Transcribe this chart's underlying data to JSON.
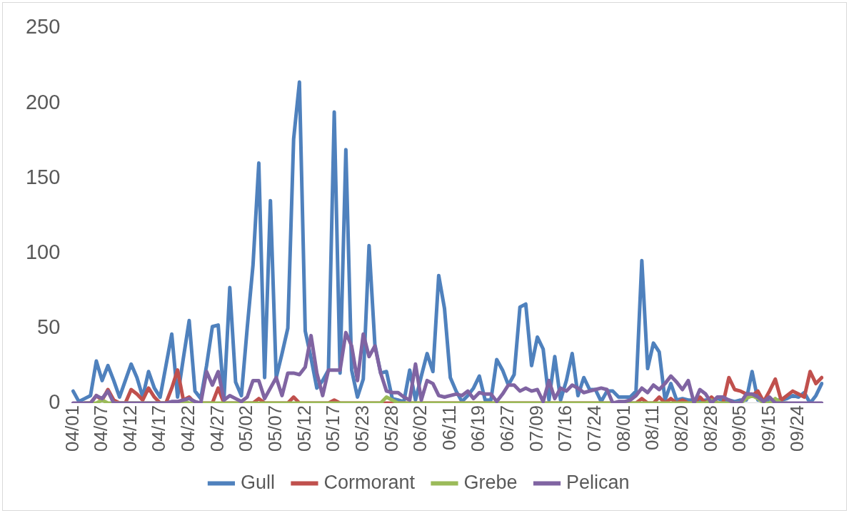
{
  "chart_data": {
    "type": "line",
    "categories": [
      "04/01",
      null,
      null,
      null,
      null,
      "04/07",
      null,
      null,
      null,
      null,
      "04/12",
      null,
      null,
      null,
      null,
      "04/17",
      null,
      null,
      null,
      null,
      "04/22",
      null,
      null,
      null,
      null,
      "04/27",
      null,
      null,
      null,
      null,
      "05/02",
      null,
      null,
      null,
      null,
      "05/07",
      null,
      null,
      null,
      null,
      "05/12",
      null,
      null,
      null,
      null,
      "05/17",
      null,
      null,
      null,
      null,
      "05/23",
      null,
      null,
      null,
      null,
      "05/28",
      null,
      null,
      null,
      null,
      "06/02",
      null,
      null,
      null,
      null,
      "06/11",
      null,
      null,
      null,
      null,
      "06/19",
      null,
      null,
      null,
      null,
      "06/27",
      null,
      null,
      null,
      null,
      "07/09",
      null,
      null,
      null,
      null,
      "07/16",
      null,
      null,
      null,
      null,
      "07/24",
      null,
      null,
      null,
      null,
      "08/01",
      null,
      null,
      null,
      null,
      "08/11",
      null,
      null,
      null,
      null,
      "08/20",
      null,
      null,
      null,
      null,
      "08/28",
      null,
      null,
      null,
      null,
      "09/05",
      null,
      null,
      null,
      null,
      "09/15",
      null,
      null,
      null,
      null,
      "09/24",
      null,
      null,
      null,
      null
    ],
    "series": [
      {
        "name": "Gull",
        "color": "#4f81bd",
        "values": [
          8,
          1,
          3,
          5,
          28,
          15,
          25,
          15,
          4,
          15,
          26,
          17,
          4,
          21,
          10,
          4,
          25,
          46,
          4,
          30,
          55,
          8,
          3,
          25,
          51,
          52,
          3,
          77,
          14,
          5,
          50,
          92,
          160,
          17,
          135,
          17,
          33,
          50,
          176,
          214,
          48,
          30,
          10,
          15,
          22,
          194,
          20,
          169,
          22,
          4,
          16,
          105,
          39,
          20,
          21,
          3,
          2,
          1,
          22,
          2,
          18,
          33,
          21,
          85,
          63,
          17,
          8,
          1,
          5,
          10,
          18,
          2,
          2,
          29,
          22,
          12,
          19,
          64,
          66,
          25,
          44,
          36,
          2,
          31,
          2,
          15,
          33,
          5,
          17,
          9,
          9,
          1,
          8,
          8,
          4,
          4,
          4,
          8,
          95,
          23,
          40,
          34,
          2,
          13,
          2,
          3,
          2,
          2,
          1,
          2,
          2,
          3,
          2,
          2,
          1,
          2,
          2,
          21,
          2,
          2,
          1,
          2,
          2,
          3,
          5,
          4,
          7,
          0,
          5,
          13
        ]
      },
      {
        "name": "Cormorant",
        "color": "#c0504d",
        "values": [
          null,
          null,
          0,
          0,
          5,
          2,
          9,
          2,
          0,
          0,
          9,
          6,
          2,
          10,
          4,
          0,
          0,
          10,
          22,
          2,
          4,
          0,
          0,
          0,
          0,
          10,
          0,
          0,
          0,
          0,
          0,
          0,
          3,
          0,
          0,
          0,
          0,
          0,
          4,
          0,
          0,
          0,
          0,
          0,
          0,
          2,
          0,
          0,
          0,
          0,
          0,
          0,
          0,
          0,
          0,
          0,
          0,
          0,
          0,
          0,
          0,
          0,
          0,
          0,
          0,
          0,
          0,
          0,
          0,
          0,
          0,
          0,
          0,
          0,
          0,
          0,
          0,
          0,
          0,
          0,
          0,
          0,
          0,
          0,
          0,
          0,
          0,
          0,
          0,
          0,
          0,
          0,
          0,
          0,
          0,
          0,
          0,
          0,
          3,
          0,
          0,
          4,
          0,
          3,
          0,
          2,
          0,
          0,
          4,
          0,
          4,
          0,
          0,
          17,
          9,
          8,
          6,
          5,
          8,
          1,
          8,
          16,
          2,
          5,
          8,
          6,
          4,
          21,
          13,
          17
        ]
      },
      {
        "name": "Grebe",
        "color": "#9bbb59",
        "values": [
          null,
          null,
          0,
          0,
          0,
          2,
          0,
          0,
          0,
          0,
          0,
          0,
          0,
          0,
          0,
          0,
          0,
          0,
          0,
          1,
          0,
          0,
          0,
          0,
          0,
          0,
          0,
          0,
          0,
          0,
          0,
          0,
          0,
          0,
          0,
          0,
          0,
          0,
          0,
          0,
          0,
          0,
          0,
          0,
          0,
          0,
          0,
          0,
          0,
          0,
          0,
          0,
          0,
          0,
          4,
          2,
          0,
          0,
          0,
          0,
          0,
          0,
          0,
          0,
          0,
          0,
          0,
          0,
          0,
          0,
          0,
          0,
          0,
          0,
          0,
          0,
          0,
          0,
          0,
          0,
          0,
          0,
          0,
          0,
          0,
          0,
          0,
          0,
          0,
          0,
          0,
          0,
          0,
          0,
          0,
          0,
          0,
          0,
          0,
          0,
          0,
          0,
          0,
          0,
          0,
          0,
          0,
          0,
          0,
          0,
          2,
          0,
          0,
          0,
          0,
          0,
          3,
          5,
          3,
          0,
          0,
          3,
          0,
          0,
          null,
          null,
          null,
          null,
          null,
          null
        ]
      },
      {
        "name": "Pelican",
        "color": "#8064a2",
        "values": [
          0,
          0,
          0,
          0,
          5,
          3,
          8,
          0,
          0,
          0,
          0,
          0,
          0,
          0,
          0,
          0,
          0,
          1,
          1,
          2,
          3,
          1,
          0,
          21,
          12,
          21,
          2,
          5,
          3,
          1,
          4,
          15,
          15,
          3,
          10,
          17,
          5,
          20,
          20,
          19,
          24,
          45,
          20,
          5,
          22,
          22,
          22,
          47,
          38,
          15,
          46,
          31,
          38,
          20,
          8,
          7,
          7,
          4,
          2,
          26,
          2,
          15,
          13,
          5,
          4,
          5,
          6,
          5,
          8,
          3,
          7,
          6,
          6,
          1,
          6,
          12,
          12,
          8,
          10,
          8,
          9,
          1,
          15,
          3,
          10,
          8,
          12,
          10,
          7,
          8,
          9,
          10,
          9,
          0,
          1,
          1,
          2,
          5,
          10,
          7,
          12,
          9,
          13,
          18,
          14,
          9,
          15,
          0,
          9,
          6,
          0,
          4,
          4,
          2,
          0,
          0,
          6,
          6,
          4,
          1,
          4,
          0,
          0,
          0,
          0,
          0,
          0,
          0,
          0,
          0
        ]
      }
    ],
    "ylim": [
      0,
      250
    ],
    "yticks": [
      0,
      50,
      100,
      150,
      200,
      250
    ],
    "grid": false,
    "legend": "bottom",
    "marker": "none",
    "line_style": "solid"
  }
}
